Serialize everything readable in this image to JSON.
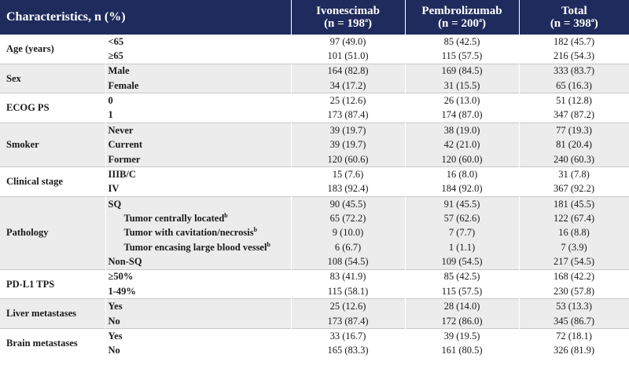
{
  "header": {
    "characteristics": "Characteristics, n (%)",
    "columns": [
      {
        "name": "Ivonescimab",
        "n": "(n = 198",
        "sup": "a",
        "close": ")"
      },
      {
        "name": "Pembrolizumab",
        "n": "(n = 200",
        "sup": "a",
        "close": ")"
      },
      {
        "name": "Total",
        "n": "(n = 398",
        "sup": "a",
        "close": ")"
      }
    ]
  },
  "groups": [
    {
      "label": "Age (years)",
      "rows": [
        {
          "label": "<65",
          "values": [
            "97 (49.0)",
            "85 (42.5)",
            "182 (45.7)"
          ]
        },
        {
          "label": "≥65",
          "values": [
            "101 (51.0)",
            "115 (57.5)",
            "216 (54.3)"
          ]
        }
      ]
    },
    {
      "label": "Sex",
      "rows": [
        {
          "label": "Male",
          "values": [
            "164 (82.8)",
            "169 (84.5)",
            "333 (83.7)"
          ]
        },
        {
          "label": "Female",
          "values": [
            "34 (17.2)",
            "31 (15.5)",
            "65 (16.3)"
          ]
        }
      ]
    },
    {
      "label": "ECOG PS",
      "rows": [
        {
          "label": "0",
          "values": [
            "25 (12.6)",
            "26 (13.0)",
            "51 (12.8)"
          ]
        },
        {
          "label": "1",
          "values": [
            "173 (87.4)",
            "174 (87.0)",
            "347 (87.2)"
          ]
        }
      ]
    },
    {
      "label": "Smoker",
      "rows": [
        {
          "label": "Never",
          "values": [
            "39 (19.7)",
            "38 (19.0)",
            "77 (19.3)"
          ]
        },
        {
          "label": "Current",
          "values": [
            "39 (19.7)",
            "42 (21.0)",
            "81 (20.4)"
          ]
        },
        {
          "label": "Former",
          "values": [
            "120 (60.6)",
            "120 (60.0)",
            "240 (60.3)"
          ]
        }
      ]
    },
    {
      "label": "Clinical stage",
      "rows": [
        {
          "label": "IIIB/C",
          "values": [
            "15 (7.6)",
            "16 (8.0)",
            "31 (7.8)"
          ]
        },
        {
          "label": "IV",
          "values": [
            "183 (92.4)",
            "184 (92.0)",
            "367 (92.2)"
          ]
        }
      ]
    },
    {
      "label": "Pathology",
      "rows": [
        {
          "label": "SQ",
          "values": [
            "90 (45.5)",
            "91 (45.5)",
            "181 (45.5)"
          ]
        },
        {
          "label": "Tumor centrally located",
          "sup": "b",
          "indent": true,
          "values": [
            "65 (72.2)",
            "57 (62.6)",
            "122 (67.4)"
          ]
        },
        {
          "label": "Tumor with cavitation/necrosis",
          "sup": "b",
          "indent": true,
          "values": [
            "9 (10.0)",
            "7 (7.7)",
            "16 (8.8)"
          ]
        },
        {
          "label": "Tumor encasing large blood vessel",
          "sup": "b",
          "indent": true,
          "values": [
            "6 (6.7)",
            "1 (1.1)",
            "7 (3.9)"
          ]
        },
        {
          "label": "Non-SQ",
          "values": [
            "108 (54.5)",
            "109 (54.5)",
            "217 (54.5)"
          ]
        }
      ]
    },
    {
      "label": "PD-L1 TPS",
      "rows": [
        {
          "label": "≥50%",
          "values": [
            "83 (41.9)",
            "85 (42.5)",
            "168 (42.2)"
          ]
        },
        {
          "label": "1-49%",
          "values": [
            "115 (58.1)",
            "115 (57.5)",
            "230 (57.8)"
          ]
        }
      ]
    },
    {
      "label": "Liver metastases",
      "rows": [
        {
          "label": "Yes",
          "values": [
            "25 (12.6)",
            "28 (14.0)",
            "53 (13.3)"
          ]
        },
        {
          "label": "No",
          "values": [
            "173 (87.4)",
            "172 (86.0)",
            "345 (86.7)"
          ]
        }
      ]
    },
    {
      "label": "Brain metastases",
      "rows": [
        {
          "label": "Yes",
          "values": [
            "33 (16.7)",
            "39 (19.5)",
            "72 (18.1)"
          ]
        },
        {
          "label": "No",
          "values": [
            "165 (83.3)",
            "161 (80.5)",
            "326 (81.9)"
          ]
        }
      ]
    }
  ]
}
